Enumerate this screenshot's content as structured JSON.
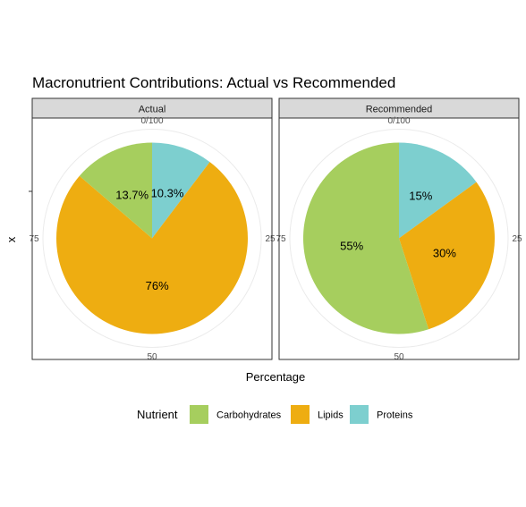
{
  "chart_data": {
    "type": "pie",
    "title": "Macronutrient Contributions: Actual vs Recommended",
    "xlabel": "Percentage",
    "ylabel": "x",
    "y_tick": "",
    "angle_ticks": [
      "0/100",
      "25",
      "50",
      "75"
    ],
    "colors": {
      "Carbohydrates": "#A6CE5E",
      "Lipids": "#EEAD11",
      "Proteins": "#7DCFCF"
    },
    "legend": {
      "title": "Nutrient",
      "position": "bottom",
      "items": [
        "Carbohydrates",
        "Lipids",
        "Proteins"
      ]
    },
    "panels": [
      {
        "name": "Actual",
        "slices": [
          {
            "category": "Proteins",
            "value": 10.3,
            "label": "10.3%"
          },
          {
            "category": "Lipids",
            "value": 76,
            "label": "76%"
          },
          {
            "category": "Carbohydrates",
            "value": 13.7,
            "label": "13.7%"
          }
        ]
      },
      {
        "name": "Recommended",
        "slices": [
          {
            "category": "Proteins",
            "value": 15,
            "label": "15%"
          },
          {
            "category": "Lipids",
            "value": 30,
            "label": "30%"
          },
          {
            "category": "Carbohydrates",
            "value": 55,
            "label": "55%"
          }
        ]
      }
    ]
  }
}
